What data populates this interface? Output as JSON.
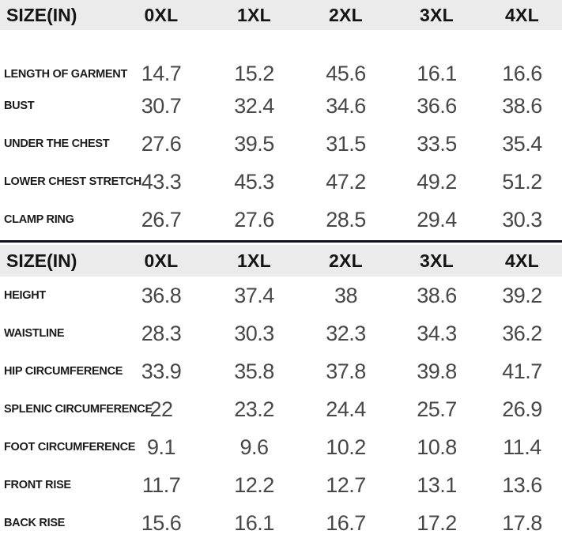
{
  "colors": {
    "header_bg": "#ebebeb",
    "divider": "#10101a",
    "label_text": "#1b1b1b",
    "value_text": "#474747",
    "header_text": "#141414"
  },
  "chart_data": [
    {
      "type": "table",
      "title": "Size chart (inches) — upper garment",
      "columns": [
        "SIZE(IN)",
        "0XL",
        "1XL",
        "2XL",
        "3XL",
        "4XL"
      ],
      "rows": [
        [
          "LENGTH OF GARMENT",
          14.7,
          15.2,
          45.6,
          16.1,
          16.6
        ],
        [
          "BUST",
          30.7,
          32.4,
          34.6,
          36.6,
          38.6
        ],
        [
          "UNDER THE CHEST",
          27.6,
          39.5,
          31.5,
          33.5,
          35.4
        ],
        [
          "LOWER CHEST STRETCH",
          43.3,
          45.3,
          47.2,
          49.2,
          51.2
        ],
        [
          "CLAMP RING",
          26.7,
          27.6,
          28.5,
          29.4,
          30.3
        ]
      ]
    },
    {
      "type": "table",
      "title": "Size chart (inches) — lower garment",
      "columns": [
        "SIZE(IN)",
        "0XL",
        "1XL",
        "2XL",
        "3XL",
        "4XL"
      ],
      "rows": [
        [
          "HEIGHT",
          36.8,
          37.4,
          38,
          38.6,
          39.2
        ],
        [
          "WAISTLINE",
          28.3,
          30.3,
          32.3,
          34.3,
          36.2
        ],
        [
          "HIP CIRCUMFERENCE",
          33.9,
          35.8,
          37.8,
          39.8,
          41.7
        ],
        [
          "SPLENIC CIRCUMFERENCE",
          22,
          23.2,
          24.4,
          25.7,
          26.9
        ],
        [
          "FOOT CIRCUMFERENCE",
          9.1,
          9.6,
          10.2,
          10.8,
          11.4
        ],
        [
          "FRONT RISE",
          11.7,
          12.2,
          12.7,
          13.1,
          13.6
        ],
        [
          "BACK RISE",
          15.6,
          16.1,
          16.7,
          17.2,
          17.8
        ]
      ]
    }
  ]
}
